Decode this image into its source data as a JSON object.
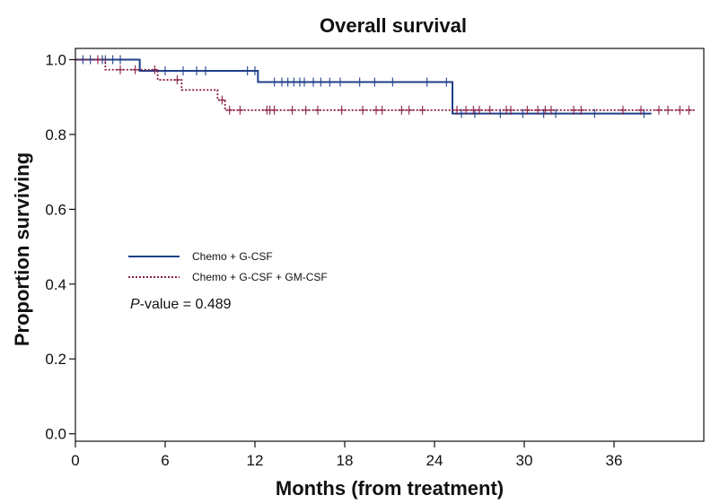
{
  "chart_data": {
    "type": "line",
    "subtype": "kaplan-meier",
    "title": "Overall survival",
    "xlabel": "Months (from treatment)",
    "ylabel": "Proportion surviving",
    "xlim": [
      0,
      42
    ],
    "ylim": [
      -0.02,
      1.03
    ],
    "xticks": [
      0,
      6,
      12,
      18,
      24,
      30,
      36
    ],
    "yticks": [
      0.0,
      0.2,
      0.4,
      0.6,
      0.8,
      1.0
    ],
    "ytick_labels": [
      "0.0",
      "0.2",
      "0.4",
      "0.6",
      "0.8",
      "1.0"
    ],
    "grid": false,
    "legend_position": "center-left",
    "annotation": {
      "italic": "P",
      "text": "-value = 0.489"
    },
    "series": [
      {
        "name": "Chemo + G-CSF",
        "color": "#1f3f8a",
        "line_style": "solid",
        "steps": [
          [
            0,
            1.0
          ],
          [
            4.3,
            0.97
          ],
          [
            12.2,
            0.94
          ],
          [
            25.2,
            0.856
          ],
          [
            38.5,
            0.856
          ]
        ],
        "censored": [
          [
            0.5,
            1.0
          ],
          [
            1.0,
            1.0
          ],
          [
            1.8,
            1.0
          ],
          [
            2.0,
            1.0
          ],
          [
            2.5,
            1.0
          ],
          [
            3.0,
            1.0
          ],
          [
            6.0,
            0.97
          ],
          [
            7.2,
            0.97
          ],
          [
            8.1,
            0.97
          ],
          [
            8.7,
            0.97
          ],
          [
            11.5,
            0.97
          ],
          [
            12.0,
            0.97
          ],
          [
            13.3,
            0.94
          ],
          [
            13.8,
            0.94
          ],
          [
            14.2,
            0.94
          ],
          [
            14.6,
            0.94
          ],
          [
            15.0,
            0.94
          ],
          [
            15.3,
            0.94
          ],
          [
            15.9,
            0.94
          ],
          [
            16.4,
            0.94
          ],
          [
            17.0,
            0.94
          ],
          [
            17.7,
            0.94
          ],
          [
            19.0,
            0.94
          ],
          [
            20.0,
            0.94
          ],
          [
            21.2,
            0.94
          ],
          [
            23.5,
            0.94
          ],
          [
            24.8,
            0.94
          ],
          [
            25.8,
            0.856
          ],
          [
            26.7,
            0.856
          ],
          [
            28.4,
            0.856
          ],
          [
            29.9,
            0.856
          ],
          [
            31.3,
            0.856
          ],
          [
            32.1,
            0.856
          ],
          [
            34.7,
            0.856
          ],
          [
            38.0,
            0.856
          ]
        ]
      },
      {
        "name": "Chemo + G-CSF + GM-CSF",
        "color": "#8a1f45",
        "line_style": "dotted",
        "steps": [
          [
            0,
            1.0
          ],
          [
            2.0,
            0.973
          ],
          [
            5.5,
            0.946
          ],
          [
            7.1,
            0.919
          ],
          [
            9.5,
            0.892
          ],
          [
            10.0,
            0.865
          ],
          [
            41.5,
            0.865
          ]
        ],
        "censored": [
          [
            1.5,
            1.0
          ],
          [
            3.0,
            0.973
          ],
          [
            4.0,
            0.973
          ],
          [
            5.3,
            0.973
          ],
          [
            6.8,
            0.946
          ],
          [
            9.8,
            0.892
          ],
          [
            10.3,
            0.865
          ],
          [
            11.0,
            0.865
          ],
          [
            12.8,
            0.865
          ],
          [
            13.0,
            0.865
          ],
          [
            13.3,
            0.865
          ],
          [
            14.5,
            0.865
          ],
          [
            15.4,
            0.865
          ],
          [
            16.2,
            0.865
          ],
          [
            17.8,
            0.865
          ],
          [
            19.2,
            0.865
          ],
          [
            20.1,
            0.865
          ],
          [
            20.5,
            0.865
          ],
          [
            21.8,
            0.865
          ],
          [
            22.3,
            0.865
          ],
          [
            23.2,
            0.865
          ],
          [
            25.5,
            0.865
          ],
          [
            26.1,
            0.865
          ],
          [
            26.6,
            0.865
          ],
          [
            27.0,
            0.865
          ],
          [
            27.7,
            0.865
          ],
          [
            28.8,
            0.865
          ],
          [
            29.1,
            0.865
          ],
          [
            30.2,
            0.865
          ],
          [
            30.9,
            0.865
          ],
          [
            31.4,
            0.865
          ],
          [
            31.8,
            0.865
          ],
          [
            33.3,
            0.865
          ],
          [
            33.8,
            0.865
          ],
          [
            36.6,
            0.865
          ],
          [
            37.8,
            0.865
          ],
          [
            39.0,
            0.865
          ],
          [
            39.6,
            0.865
          ],
          [
            40.4,
            0.865
          ],
          [
            41.0,
            0.865
          ]
        ]
      }
    ]
  }
}
